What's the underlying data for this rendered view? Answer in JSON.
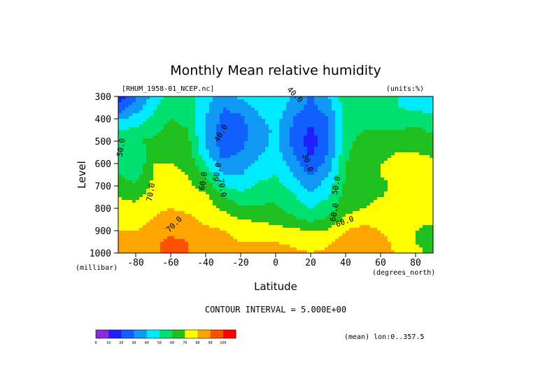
{
  "chart_data": {
    "type": "heatmap",
    "title": "Monthly Mean relative humidity",
    "source_label": "[RHUM_1958-01_NCEP.nc]",
    "units_label": "(units:%)",
    "xlabel": "Latitude",
    "xunit_label": "(degrees_north)",
    "ylabel": "Level",
    "yunit_label": "(millibar)",
    "contour_interval_label": "CONTOUR INTERVAL = 5.000E+00",
    "mean_label": "(mean) lon:0..357.5",
    "x_ticks": [
      "-80",
      "-60",
      "-40",
      "-20",
      "0",
      "20",
      "40",
      "60",
      "80"
    ],
    "x_tick_values": [
      -80,
      -60,
      -40,
      -20,
      0,
      20,
      40,
      60,
      80
    ],
    "y_ticks": [
      "300",
      "400",
      "500",
      "600",
      "700",
      "800",
      "900",
      "1000"
    ],
    "y_tick_values": [
      300,
      400,
      500,
      600,
      700,
      800,
      900,
      1000
    ],
    "xlim": [
      -90,
      90
    ],
    "ylim": [
      1000,
      300
    ],
    "colorbar": {
      "labels": [
        "0",
        "10",
        "20",
        "30",
        "40",
        "50",
        "60",
        "70",
        "80",
        "90",
        "100"
      ],
      "colors": [
        "#8a2be2",
        "#2020ff",
        "#1060ff",
        "#1098f5",
        "#00eaff",
        "#00e070",
        "#20c020",
        "#ffff00",
        "#ffa500",
        "#ff5000",
        "#ff0000"
      ]
    },
    "contour_labels": [
      "40.0",
      "40.0",
      "30.0",
      "50.0",
      "60.0",
      "70.0",
      "60.0",
      "70.0",
      "50.0",
      "60.0",
      "60.0",
      "70.0"
    ],
    "latitudes": [
      -90,
      -80,
      -70,
      -60,
      -50,
      -40,
      -30,
      -20,
      -10,
      0,
      10,
      20,
      30,
      40,
      50,
      60,
      70,
      80,
      90
    ],
    "levels": [
      300,
      350,
      400,
      450,
      500,
      550,
      600,
      650,
      700,
      750,
      800,
      850,
      900,
      950,
      1000
    ],
    "values": [
      [
        15,
        28,
        42,
        55,
        54,
        45,
        35,
        42,
        48,
        50,
        38,
        28,
        40,
        56,
        58,
        52,
        50,
        48,
        46
      ],
      [
        22,
        35,
        48,
        58,
        56,
        42,
        30,
        33,
        42,
        48,
        35,
        27,
        35,
        55,
        58,
        52,
        50,
        48,
        46
      ],
      [
        38,
        45,
        52,
        60,
        57,
        40,
        27,
        28,
        38,
        44,
        30,
        22,
        30,
        54,
        58,
        55,
        55,
        55,
        54
      ],
      [
        50,
        52,
        56,
        64,
        60,
        38,
        25,
        26,
        35,
        42,
        28,
        18,
        28,
        56,
        60,
        60,
        60,
        62,
        58
      ],
      [
        55,
        60,
        62,
        66,
        62,
        40,
        24,
        27,
        36,
        42,
        27,
        15,
        28,
        58,
        62,
        66,
        66,
        66,
        64
      ],
      [
        58,
        50,
        66,
        68,
        64,
        42,
        26,
        30,
        38,
        44,
        30,
        18,
        30,
        58,
        66,
        68,
        70,
        70,
        68
      ],
      [
        60,
        50,
        70,
        70,
        68,
        50,
        32,
        35,
        42,
        48,
        35,
        22,
        34,
        60,
        66,
        70,
        72,
        74,
        72
      ],
      [
        60,
        55,
        70,
        72,
        70,
        58,
        40,
        40,
        46,
        50,
        40,
        28,
        40,
        60,
        66,
        70,
        74,
        76,
        74
      ],
      [
        65,
        62,
        72,
        74,
        72,
        66,
        50,
        46,
        52,
        54,
        46,
        35,
        46,
        62,
        66,
        68,
        72,
        76,
        74
      ],
      [
        70,
        68,
        74,
        76,
        75,
        72,
        60,
        54,
        56,
        58,
        52,
        42,
        50,
        64,
        68,
        70,
        72,
        76,
        74
      ],
      [
        75,
        72,
        78,
        80,
        78,
        75,
        68,
        62,
        62,
        62,
        56,
        50,
        56,
        66,
        70,
        72,
        74,
        76,
        74
      ],
      [
        78,
        75,
        80,
        84,
        82,
        78,
        75,
        70,
        68,
        66,
        62,
        58,
        62,
        72,
        76,
        74,
        72,
        74,
        72
      ],
      [
        80,
        80,
        84,
        88,
        86,
        82,
        80,
        78,
        76,
        74,
        72,
        70,
        70,
        80,
        84,
        80,
        74,
        70,
        66
      ],
      [
        82,
        85,
        88,
        92,
        90,
        86,
        82,
        80,
        80,
        80,
        78,
        76,
        78,
        86,
        88,
        84,
        76,
        70,
        66
      ],
      [
        82,
        86,
        88,
        92,
        90,
        88,
        84,
        82,
        82,
        84,
        82,
        80,
        82,
        88,
        88,
        86,
        78,
        72,
        68
      ]
    ]
  }
}
